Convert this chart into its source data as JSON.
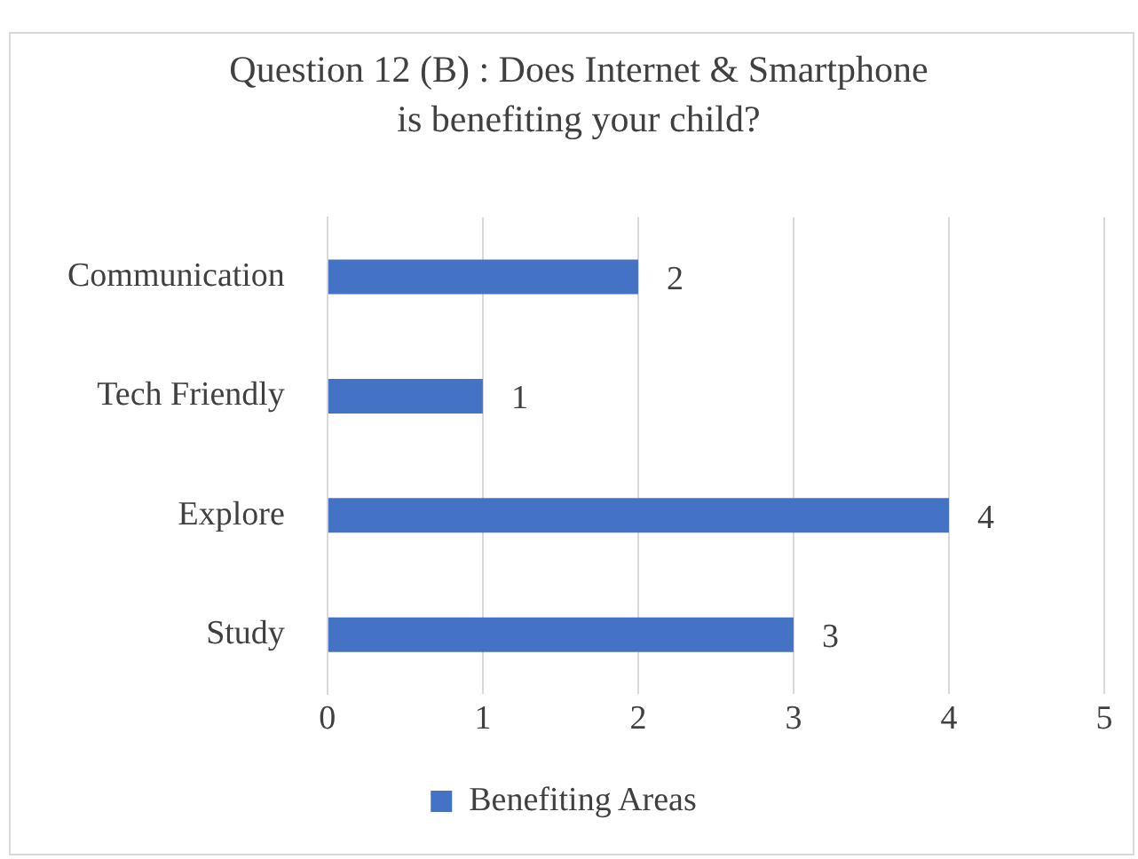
{
  "chart_data": {
    "type": "bar",
    "orientation": "horizontal",
    "title": "Question 12 (B) : Does Internet & Smartphone is benefiting your child?",
    "categories": [
      "Communication",
      "Tech Friendly",
      "Explore",
      "Study"
    ],
    "series": [
      {
        "name": "Benefiting Areas",
        "color": "#4472c4",
        "values": [
          2,
          1,
          4,
          3
        ]
      }
    ],
    "xlim": [
      0,
      5
    ],
    "xticks": [
      0,
      1,
      2,
      3,
      4,
      5
    ],
    "grid": "x",
    "legend": "bottom",
    "data_labels": true
  }
}
